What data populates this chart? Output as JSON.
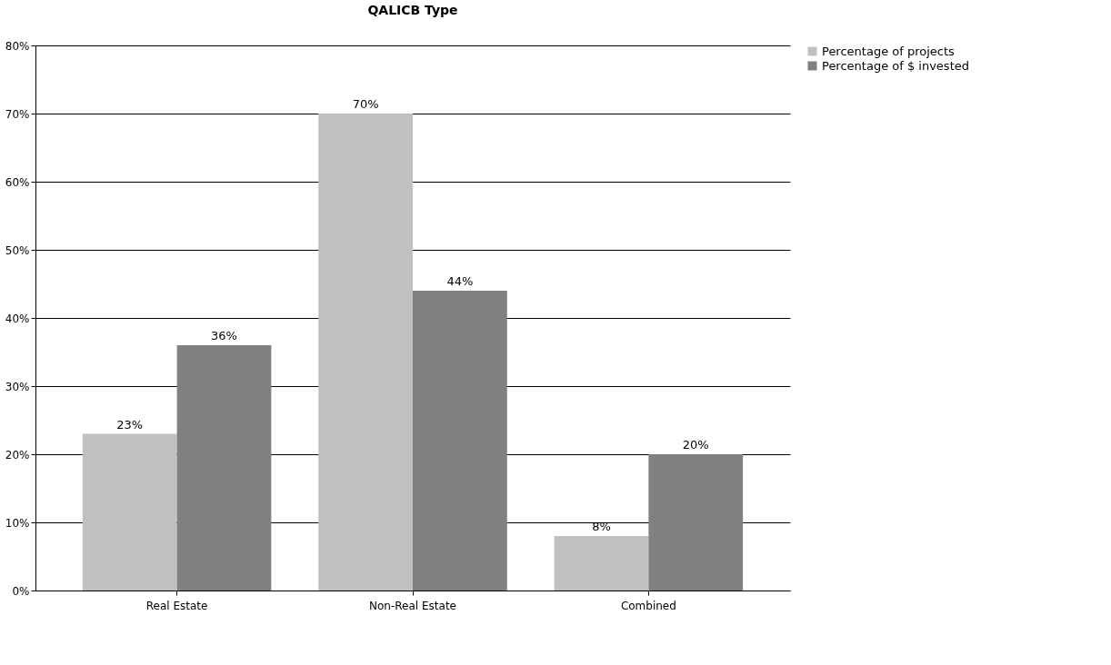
{
  "chart_data": {
    "type": "bar",
    "title": "QALICB Type",
    "categories": [
      "Real Estate",
      "Non-Real Estate",
      "Combined"
    ],
    "series": [
      {
        "name": "Percentage of projects",
        "color": "#c0c0c0",
        "values": [
          23,
          70,
          8
        ],
        "value_labels": [
          "23%",
          "70%",
          "8%"
        ]
      },
      {
        "name": "Percentage of $ invested",
        "color": "#808080",
        "values": [
          36,
          44,
          20
        ],
        "value_labels": [
          "36%",
          "44%",
          "20%"
        ]
      }
    ],
    "ylim": [
      0,
      80
    ],
    "yticks": [
      {
        "value": 0,
        "label": "0%"
      },
      {
        "value": 10,
        "label": "10%"
      },
      {
        "value": 20,
        "label": "20%"
      },
      {
        "value": 30,
        "label": "30%"
      },
      {
        "value": 40,
        "label": "40%"
      },
      {
        "value": 50,
        "label": "50%"
      },
      {
        "value": 60,
        "label": "60%"
      },
      {
        "value": 70,
        "label": "70%"
      },
      {
        "value": 80,
        "label": "80%"
      }
    ],
    "grid": "y",
    "legend": "right"
  }
}
